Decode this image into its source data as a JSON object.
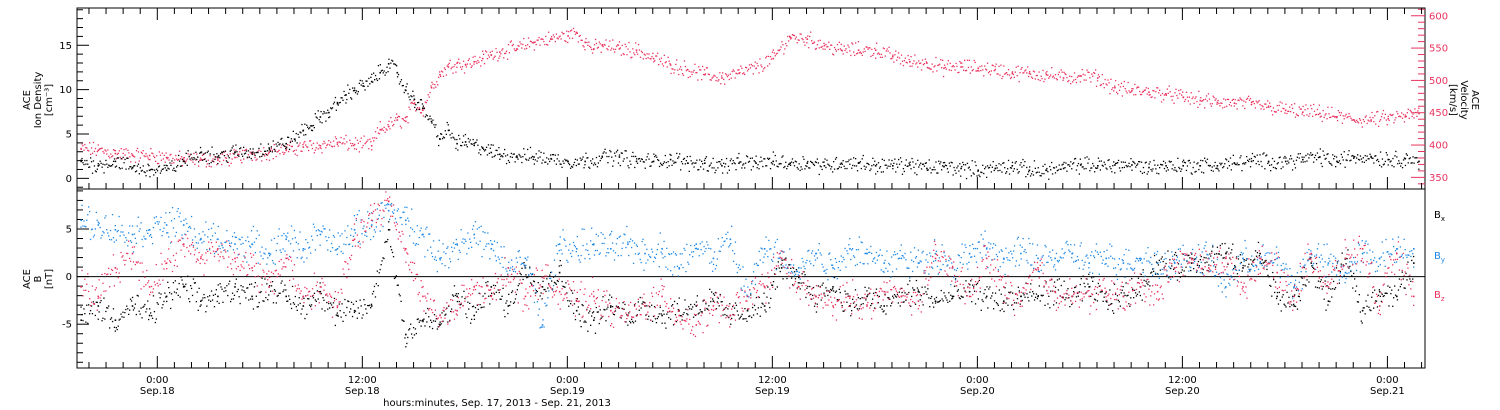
{
  "figure": {
    "footer_caption": "hours:minutes, Sep. 17, 2013 - Sep. 21, 2013"
  },
  "colors": {
    "black": "#000000",
    "pink": "#e8335f",
    "blue": "#1e88e5"
  },
  "chart_data": [
    {
      "type": "scatter",
      "panel": "top",
      "ylabel": [
        "ACE",
        "Ion Density",
        "[cm⁻³]"
      ],
      "ylabel_right": [
        "ACE",
        "Velocity",
        "[km/s]"
      ],
      "x_unit": "hours since Sep. 17, 2013 00:00 UT",
      "xlim": [
        19.3,
        98.2
      ],
      "ylim": [
        -1.2,
        19.2
      ],
      "ylim_right": [
        332,
        612
      ],
      "yticks": [
        "0",
        "5",
        "10",
        "15"
      ],
      "yticks_right": [
        "350",
        "400",
        "450",
        "500",
        "550",
        "600"
      ],
      "grid": false,
      "series": [
        {
          "name": "",
          "axis": "left",
          "color": "#000000",
          "x": [
            19.5,
            20.5,
            21.5,
            22.5,
            23.5,
            24.5,
            25.5,
            26.5,
            27.5,
            28.5,
            29.5,
            30.5,
            31.5,
            32,
            32.5,
            33,
            33.5,
            34,
            34.5,
            35,
            35.5,
            36,
            36.5,
            37,
            37.5,
            38,
            38.5,
            39,
            39.5,
            40,
            40.5,
            41,
            41.5,
            42,
            42.5,
            43,
            43.5,
            44,
            45,
            46,
            47,
            48,
            49,
            50,
            51,
            52,
            53,
            54,
            55,
            56,
            57,
            58,
            59,
            60,
            61,
            62,
            63,
            64,
            65,
            66,
            67,
            68,
            69,
            70,
            71,
            72,
            73,
            74,
            75,
            76,
            77,
            78,
            79,
            80,
            81,
            82,
            83,
            84,
            85,
            86,
            87,
            88,
            89,
            90,
            91,
            92,
            93,
            94,
            95,
            96,
            97,
            97.8
          ],
          "y": [
            2.0,
            1.5,
            2.0,
            1.3,
            1.0,
            1.0,
            2.0,
            3.0,
            2.5,
            3.0,
            3.0,
            3.5,
            4.0,
            4.5,
            5.5,
            6.0,
            7.0,
            7.5,
            8.5,
            9.5,
            10.0,
            10.5,
            11.0,
            12.0,
            13.0,
            12.0,
            10.0,
            9.0,
            8.0,
            6.5,
            4.5,
            5.5,
            4.0,
            4.2,
            3.8,
            3.5,
            3.0,
            2.8,
            2.6,
            2.5,
            2.3,
            2.0,
            2.0,
            2.5,
            2.5,
            2.0,
            2.0,
            2.2,
            1.8,
            1.8,
            1.5,
            1.8,
            1.8,
            2.0,
            1.8,
            1.8,
            1.5,
            1.8,
            1.8,
            1.5,
            1.5,
            1.6,
            1.2,
            1.4,
            1.2,
            1.0,
            1.2,
            1.5,
            1.0,
            1.0,
            1.2,
            1.6,
            1.5,
            1.6,
            1.6,
            1.3,
            1.5,
            1.5,
            1.5,
            1.5,
            1.8,
            2.0,
            2.0,
            2.0,
            2.2,
            2.5,
            2.0,
            2.5,
            2.5,
            2.2,
            2.3,
            2.0
          ]
        },
        {
          "name": "",
          "axis": "right",
          "color": "#e8335f",
          "x": [
            19.5,
            20.5,
            21.5,
            22.5,
            23.5,
            24.5,
            25.5,
            26.5,
            27.5,
            28.5,
            29.5,
            30.5,
            31.5,
            32.5,
            33.5,
            34.5,
            35.5,
            36.5,
            37,
            37.5,
            38,
            38.5,
            39,
            39.5,
            40,
            40.5,
            41,
            41.5,
            42,
            42.5,
            43,
            43.5,
            44,
            45,
            46,
            47,
            48,
            48.5,
            49,
            49.5,
            50,
            51,
            52,
            53,
            54,
            55,
            56,
            57,
            58,
            59,
            60,
            61,
            62,
            63,
            64,
            65,
            66,
            67,
            68,
            69,
            70,
            71,
            72,
            73,
            74,
            75,
            76,
            77,
            78,
            79,
            80,
            81,
            82,
            83,
            84,
            85,
            86,
            87,
            88,
            89,
            90,
            91,
            92,
            93,
            94,
            95,
            96,
            97,
            97.8
          ],
          "y": [
            395,
            393,
            388,
            385,
            385,
            382,
            378,
            378,
            378,
            382,
            388,
            390,
            393,
            398,
            400,
            405,
            402,
            400,
            425,
            430,
            440,
            438,
            465,
            455,
            490,
            510,
            522,
            528,
            525,
            530,
            535,
            540,
            545,
            550,
            560,
            565,
            570,
            575,
            560,
            550,
            555,
            550,
            548,
            535,
            525,
            518,
            510,
            505,
            512,
            520,
            535,
            568,
            565,
            555,
            548,
            548,
            548,
            538,
            530,
            528,
            520,
            522,
            520,
            518,
            512,
            512,
            510,
            505,
            508,
            505,
            490,
            485,
            483,
            480,
            475,
            470,
            467,
            466,
            464,
            460,
            455,
            452,
            450,
            445,
            440,
            440,
            442,
            445,
            450
          ]
        }
      ]
    },
    {
      "type": "scatter",
      "panel": "bottom",
      "ylabel": [
        "ACE",
        "B",
        "[nT]"
      ],
      "x_unit": "hours since Sep. 17, 2013 00:00 UT",
      "xlim": [
        19.3,
        98.2
      ],
      "ylim": [
        -9.6,
        9.2
      ],
      "yticks": [
        "5",
        "0",
        "-5"
      ],
      "xticks": [
        {
          "x": 24,
          "time": "0:00",
          "date": "Sep.18"
        },
        {
          "x": 36,
          "time": "12:00",
          "date": "Sep.18"
        },
        {
          "x": 48,
          "time": "0:00",
          "date": "Sep.19"
        },
        {
          "x": 60,
          "time": "12:00",
          "date": "Sep.19"
        },
        {
          "x": 72,
          "time": "0:00",
          "date": "Sep.20"
        },
        {
          "x": 84,
          "time": "12:00",
          "date": "Sep.20"
        },
        {
          "x": 96,
          "time": "0:00",
          "date": "Sep.21"
        }
      ],
      "grid": false,
      "reference_line_y": 0,
      "legend_position": "right",
      "series": [
        {
          "name": "Bx",
          "legend_main": "B",
          "legend_sub": "x",
          "color": "#000000",
          "x": [
            19.5,
            20.5,
            21.5,
            22.5,
            23.5,
            24.5,
            25.5,
            26.5,
            27.5,
            28.5,
            29.5,
            30.5,
            31.5,
            32.5,
            33.5,
            34.5,
            35.5,
            36.5,
            37.5,
            38.5,
            39.5,
            40.5,
            41.5,
            42.5,
            43.5,
            44.5,
            45.5,
            46.5,
            47.5,
            48.5,
            49.5,
            50.5,
            51.5,
            52.5,
            53.5,
            54.5,
            55.5,
            56.5,
            57.5,
            58.5,
            59.5,
            60.5,
            61.5,
            62.5,
            63.5,
            64.5,
            65.5,
            66.5,
            67.5,
            68.5,
            69.5,
            70.5,
            71.5,
            72.5,
            73.5,
            74.5,
            75.5,
            76.5,
            77.5,
            78.5,
            79.5,
            80.5,
            81.5,
            82.5,
            83.5,
            84.5,
            85.5,
            86.5,
            87.5,
            88.5,
            89.5,
            90.5,
            91.5,
            92.5,
            93.5,
            94.5,
            95.5,
            96.5,
            97.5
          ],
          "y": [
            -4.5,
            -3.0,
            -4.5,
            -3.0,
            -4.0,
            -2.0,
            -1.0,
            -2.5,
            -2.0,
            -1.0,
            -2.0,
            -1.0,
            -2.0,
            -3.0,
            -1.5,
            -4.0,
            -3.5,
            -3.0,
            5.0,
            -6.0,
            -4.5,
            -5.0,
            -2.0,
            -4.0,
            -1.0,
            -3.0,
            1.0,
            -1.0,
            0.5,
            -3.5,
            -4.5,
            -3.0,
            -4.0,
            -3.0,
            -4.0,
            -3.5,
            -3.0,
            -2.5,
            -4.0,
            -3.5,
            -3.0,
            1.0,
            0.0,
            -2.0,
            -1.0,
            -3.0,
            -2.0,
            -3.0,
            -2.0,
            -1.5,
            -2.5,
            -2.0,
            -1.5,
            -2.0,
            -2.5,
            -2.0,
            -2.0,
            -1.5,
            -2.0,
            -1.0,
            -2.5,
            -2.0,
            -1.0,
            1.5,
            1.0,
            1.5,
            2.0,
            2.5,
            1.0,
            2.5,
            -2.0,
            -3.0,
            1.5,
            -2.5,
            2.0,
            -3.5,
            -1.5,
            -2.0,
            1.5
          ]
        },
        {
          "name": "By",
          "legend_main": "B",
          "legend_sub": "y",
          "color": "#1e88e5",
          "x": [
            19.5,
            20.5,
            21.5,
            22.5,
            23.5,
            24.5,
            25.5,
            26.5,
            27.5,
            28.5,
            29.5,
            30.5,
            31.5,
            32.5,
            33.5,
            34.5,
            35.5,
            36.5,
            37.5,
            38.5,
            39.5,
            40.5,
            41.5,
            42.5,
            43.5,
            44.5,
            45.5,
            46.5,
            47.5,
            48.5,
            49.5,
            50.5,
            51.5,
            52.5,
            53.5,
            54.5,
            55.5,
            56.5,
            57.5,
            58.5,
            59.5,
            60.5,
            61.5,
            62.5,
            63.5,
            64.5,
            65.5,
            66.5,
            67.5,
            68.5,
            69.5,
            70.5,
            71.5,
            72.5,
            73.5,
            74.5,
            75.5,
            76.5,
            77.5,
            78.5,
            79.5,
            80.5,
            81.5,
            82.5,
            83.5,
            84.5,
            85.5,
            86.5,
            87.5,
            88.5,
            89.5,
            90.5,
            91.5,
            92.5,
            93.5,
            94.5,
            95.5,
            96.5,
            97.5
          ],
          "y": [
            6.0,
            5.5,
            5.0,
            4.5,
            5.0,
            5.5,
            5.5,
            4.0,
            4.0,
            3.5,
            3.5,
            2.5,
            4.0,
            3.0,
            4.5,
            3.0,
            5.0,
            5.5,
            7.0,
            6.0,
            4.5,
            2.0,
            3.5,
            4.5,
            3.0,
            1.0,
            2.0,
            -5.0,
            3.5,
            3.0,
            3.5,
            3.0,
            3.5,
            2.5,
            3.0,
            1.0,
            3.5,
            2.0,
            4.0,
            -2.0,
            3.0,
            2.0,
            1.0,
            2.5,
            1.0,
            3.0,
            2.5,
            1.5,
            2.0,
            1.5,
            2.5,
            1.0,
            2.5,
            3.0,
            2.0,
            2.5,
            2.0,
            2.0,
            2.5,
            1.5,
            2.0,
            1.5,
            2.0,
            1.5,
            1.5,
            2.0,
            2.0,
            -1.0,
            2.0,
            1.5,
            2.0,
            -1.0,
            2.5,
            1.5,
            0.5,
            2.5,
            2.0,
            3.0,
            3.0
          ]
        },
        {
          "name": "Bz",
          "legend_main": "B",
          "legend_sub": "z",
          "color": "#e8335f",
          "x": [
            19.5,
            20.5,
            21.5,
            22.5,
            23.5,
            24.5,
            25.5,
            26.5,
            27.5,
            28.5,
            29.5,
            30.5,
            31.5,
            32.5,
            33.5,
            34.5,
            35.5,
            36.5,
            37.5,
            38.5,
            39.5,
            40.5,
            41.5,
            42.5,
            43.5,
            44.5,
            45.5,
            46.5,
            47.5,
            48.5,
            49.5,
            50.5,
            51.5,
            52.5,
            53.5,
            54.5,
            55.5,
            56.5,
            57.5,
            58.5,
            59.5,
            60.5,
            61.5,
            62.5,
            63.5,
            64.5,
            65.5,
            66.5,
            67.5,
            68.5,
            69.5,
            70.5,
            71.5,
            72.5,
            73.5,
            74.5,
            75.5,
            76.5,
            77.5,
            78.5,
            79.5,
            80.5,
            81.5,
            82.5,
            83.5,
            84.5,
            85.5,
            86.5,
            87.5,
            88.5,
            89.5,
            90.5,
            91.5,
            92.5,
            93.5,
            94.5,
            95.5,
            96.5,
            97.5
          ],
          "y": [
            -1.0,
            -2.0,
            1.0,
            2.5,
            -1.0,
            1.5,
            3.5,
            2.0,
            3.0,
            2.0,
            1.0,
            -1.0,
            2.0,
            -2.0,
            -1.0,
            -3.0,
            4.0,
            6.0,
            8.0,
            3.0,
            -2.0,
            -4.0,
            -3.5,
            -1.0,
            -2.0,
            1.0,
            -2.0,
            0.0,
            -1.5,
            -2.5,
            -2.0,
            -3.5,
            -4.0,
            -3.0,
            -2.0,
            -4.0,
            -5.0,
            -3.0,
            -4.0,
            -2.0,
            -1.0,
            2.0,
            -1.0,
            -2.0,
            -3.0,
            -2.0,
            -3.0,
            -1.5,
            -2.0,
            -2.5,
            2.0,
            1.0,
            -2.0,
            2.0,
            -1.0,
            -2.5,
            1.0,
            -1.5,
            -2.0,
            -2.0,
            -1.5,
            -2.0,
            -1.0,
            -1.5,
            1.0,
            2.0,
            1.0,
            2.0,
            -1.0,
            2.0,
            0.5,
            -2.0,
            2.5,
            -1.0,
            2.0,
            3.0,
            -3.0,
            2.5,
            -2.0
          ]
        }
      ]
    }
  ]
}
